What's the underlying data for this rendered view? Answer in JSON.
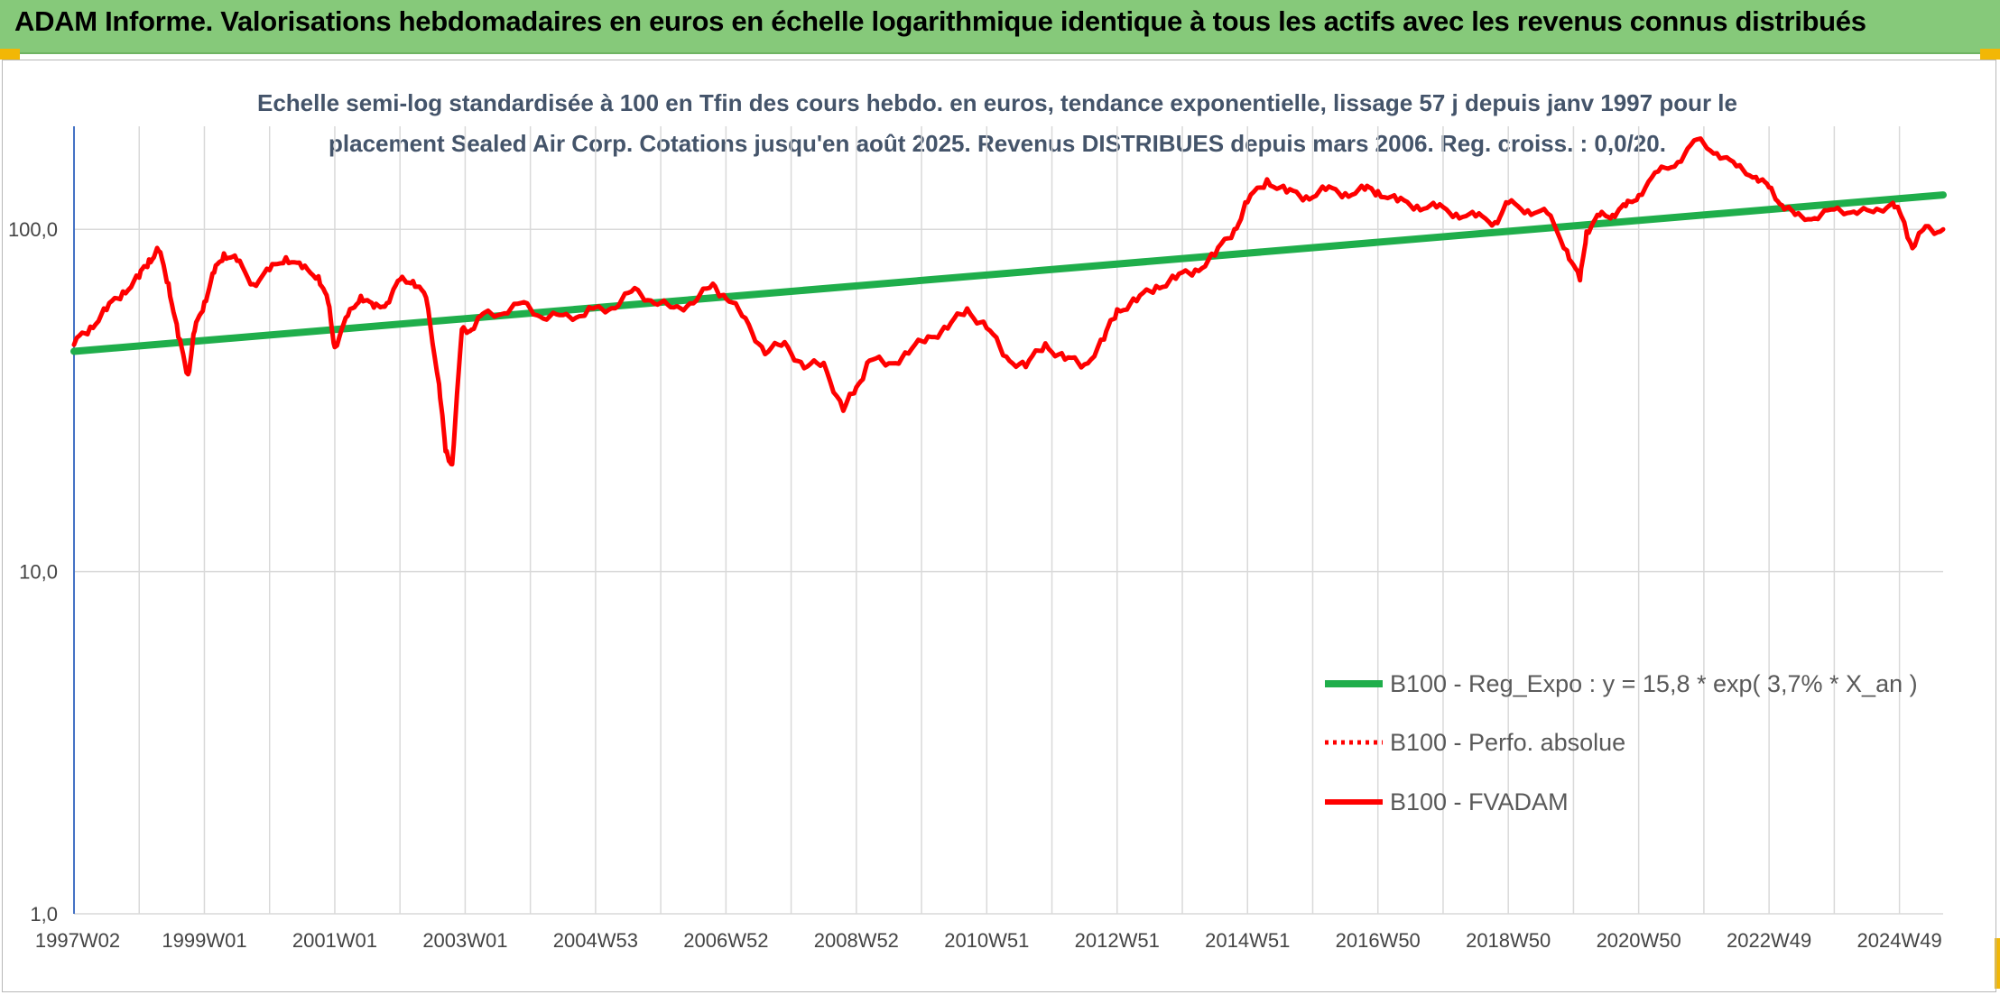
{
  "banner": {
    "title": "ADAM Informe. Valorisations hebdomadaires en euros en échelle logarithmique identique à tous les actifs avec les revenus connus distribués"
  },
  "colors": {
    "banner_bg": "#86c97a",
    "trend": "#1fae4b",
    "fvadam": "#ff0000",
    "perfo": "#ff0000",
    "grid": "#d9d9d9"
  },
  "chart_data": {
    "type": "line",
    "title_lines": [
      "Echelle semi-log standardisée à 100 en Tfin des cours hebdo. en euros, tendance exponentielle, lissage 57 j depuis janv 1997 pour le",
      "placement Sealed Air Corp. Cotations jusqu'en août 2025. Revenus DISTRIBUES depuis mars 2006. Reg. croiss. : 0,0/20."
    ],
    "y_scale": "log",
    "ylim": [
      1,
      200
    ],
    "y_ticks": [
      {
        "value": 1,
        "label": "1,0"
      },
      {
        "value": 10,
        "label": "10,0"
      },
      {
        "value": 100,
        "label": "100,0"
      }
    ],
    "xlim": [
      1997.0,
      2025.67
    ],
    "x_ticks": [
      {
        "value": 1997.0,
        "label": "1997W02"
      },
      {
        "value": 1999.0,
        "label": "1999W01"
      },
      {
        "value": 2001.0,
        "label": "2001W01"
      },
      {
        "value": 2003.0,
        "label": "2003W01"
      },
      {
        "value": 2005.0,
        "label": "2004W53"
      },
      {
        "value": 2007.0,
        "label": "2006W52"
      },
      {
        "value": 2009.0,
        "label": "2008W52"
      },
      {
        "value": 2011.0,
        "label": "2010W51"
      },
      {
        "value": 2013.0,
        "label": "2012W51"
      },
      {
        "value": 2015.0,
        "label": "2014W51"
      },
      {
        "value": 2017.0,
        "label": "2016W50"
      },
      {
        "value": 2019.0,
        "label": "2018W50"
      },
      {
        "value": 2021.0,
        "label": "2020W50"
      },
      {
        "value": 2023.0,
        "label": "2022W49"
      },
      {
        "value": 2025.0,
        "label": "2024W49"
      }
    ],
    "legend_position": "bottom-right",
    "series": [
      {
        "name": "B100 - Reg_Expo : y = 15,8 * exp( 3,7% *  X_an )",
        "style": "solid-thick",
        "x": [
          1997.0,
          2025.67
        ],
        "y": [
          44,
          126
        ]
      },
      {
        "name": "B100 - Perfo. absolue",
        "style": "dotted",
        "x": [],
        "y": []
      },
      {
        "name": "B100 - FVADAM",
        "style": "solid",
        "x": [
          1997.0,
          1997.25,
          1997.5,
          1997.75,
          1998.0,
          1998.15,
          1998.3,
          1998.45,
          1998.6,
          1998.75,
          1998.85,
          1999.0,
          1999.15,
          1999.3,
          1999.5,
          1999.75,
          2000.0,
          2000.25,
          2000.5,
          2000.75,
          2000.9,
          2001.0,
          2001.2,
          2001.4,
          2001.6,
          2001.8,
          2002.0,
          2002.2,
          2002.4,
          2002.6,
          2002.7,
          2002.8,
          2002.95,
          2003.1,
          2003.3,
          2003.6,
          2003.9,
          2004.2,
          2004.5,
          2004.8,
          2005.0,
          2005.3,
          2005.6,
          2005.9,
          2006.2,
          2006.5,
          2006.8,
          2007.0,
          2007.3,
          2007.6,
          2007.9,
          2008.2,
          2008.5,
          2008.8,
          2009.0,
          2009.2,
          2009.5,
          2009.8,
          2010.1,
          2010.4,
          2010.7,
          2011.0,
          2011.3,
          2011.6,
          2011.9,
          2012.2,
          2012.5,
          2012.8,
          2013.0,
          2013.3,
          2013.6,
          2013.9,
          2014.2,
          2014.5,
          2014.8,
          2015.0,
          2015.3,
          2015.6,
          2015.9,
          2016.2,
          2016.5,
          2016.8,
          2017.0,
          2017.3,
          2017.6,
          2017.9,
          2018.2,
          2018.5,
          2018.8,
          2019.0,
          2019.3,
          2019.6,
          2019.9,
          2020.1,
          2020.2,
          2020.4,
          2020.6,
          2020.8,
          2021.0,
          2021.3,
          2021.6,
          2021.9,
          2022.2,
          2022.5,
          2022.8,
          2023.0,
          2023.2,
          2023.4,
          2023.7,
          2024.0,
          2024.3,
          2024.6,
          2024.9,
          2025.05,
          2025.2,
          2025.4,
          2025.67
        ],
        "y": [
          46,
          52,
          58,
          66,
          72,
          82,
          86,
          70,
          48,
          38,
          50,
          62,
          74,
          86,
          80,
          70,
          75,
          84,
          76,
          74,
          60,
          46,
          55,
          65,
          58,
          62,
          70,
          72,
          62,
          36,
          22,
          21,
          50,
          52,
          56,
          58,
          60,
          56,
          55,
          57,
          58,
          60,
          66,
          62,
          58,
          62,
          68,
          64,
          54,
          44,
          46,
          40,
          40,
          30,
          34,
          42,
          40,
          44,
          48,
          52,
          58,
          52,
          42,
          40,
          46,
          42,
          40,
          48,
          58,
          62,
          68,
          72,
          76,
          84,
          100,
          120,
          140,
          128,
          125,
          130,
          128,
          130,
          130,
          120,
          118,
          115,
          112,
          108,
          106,
          118,
          115,
          110,
          88,
          70,
          100,
          108,
          112,
          115,
          128,
          145,
          160,
          180,
          170,
          150,
          145,
          130,
          120,
          108,
          110,
          112,
          115,
          110,
          122,
          105,
          90,
          100,
          100
        ]
      }
    ]
  }
}
